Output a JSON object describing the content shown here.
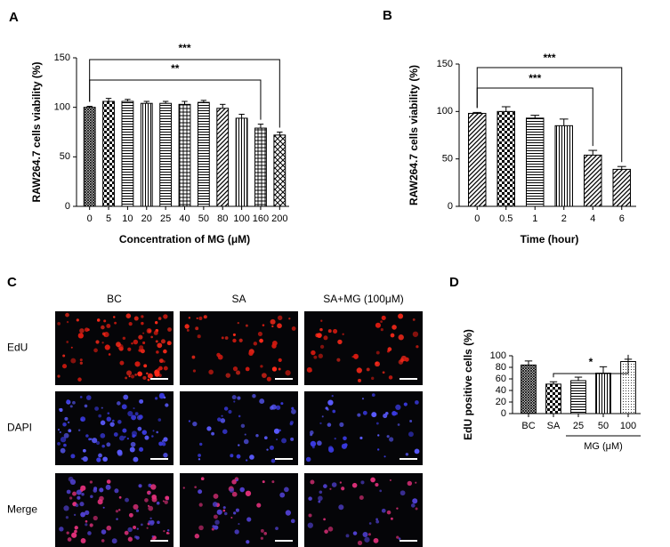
{
  "chart_data": [
    {
      "type": "bar",
      "panel_label": "A",
      "ylabel": "RAW264.7 cells viability (%)",
      "xlabel": "Concentration of MG (μM)",
      "categories": [
        "0",
        "5",
        "10",
        "20",
        "25",
        "40",
        "50",
        "80",
        "100",
        "160",
        "200"
      ],
      "values": [
        100,
        106,
        106,
        104,
        104,
        103,
        105,
        99,
        89,
        79,
        72
      ],
      "errors": [
        1,
        3,
        2,
        2,
        2,
        3,
        2,
        4,
        4,
        4,
        3
      ],
      "patterns": [
        "crosshatch",
        "checker",
        "hlines",
        "vlines",
        "hlines",
        "grid",
        "hlines",
        "diag",
        "vlines",
        "grid",
        "diamond"
      ],
      "ylim": [
        0,
        150
      ],
      "yticks": [
        0,
        50,
        100,
        150
      ],
      "brackets": [
        {
          "text": "***",
          "from": 0,
          "to": 10
        },
        {
          "text": "**",
          "from": 0,
          "to": 9
        }
      ]
    },
    {
      "type": "bar",
      "panel_label": "B",
      "ylabel": "RAW264.7 cells viability (%)",
      "xlabel": "Time (hour)",
      "categories": [
        "0",
        "0.5",
        "1",
        "2",
        "4",
        "6"
      ],
      "values": [
        98,
        100,
        93,
        85,
        54,
        39
      ],
      "errors": [
        1,
        5,
        3,
        7,
        5,
        3
      ],
      "patterns": [
        "diag",
        "checker",
        "hlines",
        "vlines",
        "diag",
        "diag"
      ],
      "ylim": [
        0,
        150
      ],
      "yticks": [
        0,
        50,
        100,
        150
      ],
      "brackets": [
        {
          "text": "***",
          "from": 0,
          "to": 5
        },
        {
          "text": "***",
          "from": 0,
          "to": 4
        }
      ]
    },
    {
      "type": "bar",
      "panel_label": "D",
      "ylabel": "EdU positive  cells (%)",
      "group_label": "MG (μM)",
      "categories": [
        "BC",
        "SA",
        "25",
        "50",
        "100"
      ],
      "values": [
        84,
        51,
        57,
        70,
        90
      ],
      "errors": [
        7,
        4,
        6,
        11,
        4
      ],
      "patterns": [
        "crosshatch",
        "checker",
        "hlines",
        "vlines",
        "dots"
      ],
      "ylim": [
        0,
        100
      ],
      "yticks": [
        0,
        20,
        40,
        60,
        80,
        100
      ],
      "group": {
        "from": 2,
        "to": 4
      },
      "brackets": [
        {
          "text": "*",
          "from": 1,
          "to": 4
        }
      ]
    }
  ],
  "image_grid": {
    "panel_label": "C",
    "columns": [
      "BC",
      "SA",
      "SA+MG (100μM)"
    ],
    "rows": [
      "EdU",
      "DAPI",
      "Merge"
    ]
  }
}
